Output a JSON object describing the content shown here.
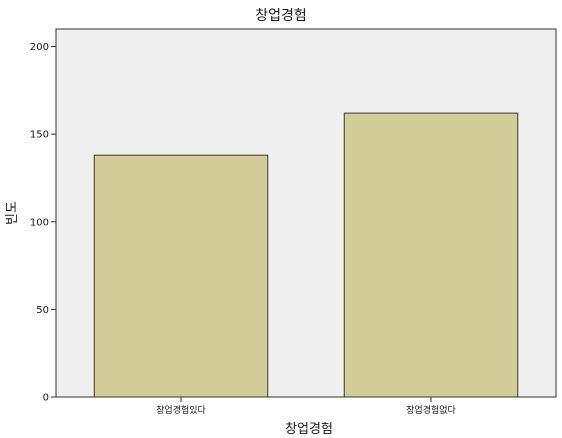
{
  "chart_data": {
    "type": "bar",
    "title": "창업경험",
    "xlabel": "창업경험",
    "ylabel": "빈도",
    "categories": [
      "창업경험있다",
      "창업경험없다"
    ],
    "values": [
      138,
      162
    ],
    "ylim": [
      0,
      210
    ],
    "yticks": [
      0,
      50,
      100,
      150,
      200
    ],
    "grid": false,
    "colors": {
      "bar_fill": "#d2cd98",
      "bar_stroke": "#3a3a2a",
      "plot_background": "#efefef",
      "axis": "#333333"
    }
  }
}
